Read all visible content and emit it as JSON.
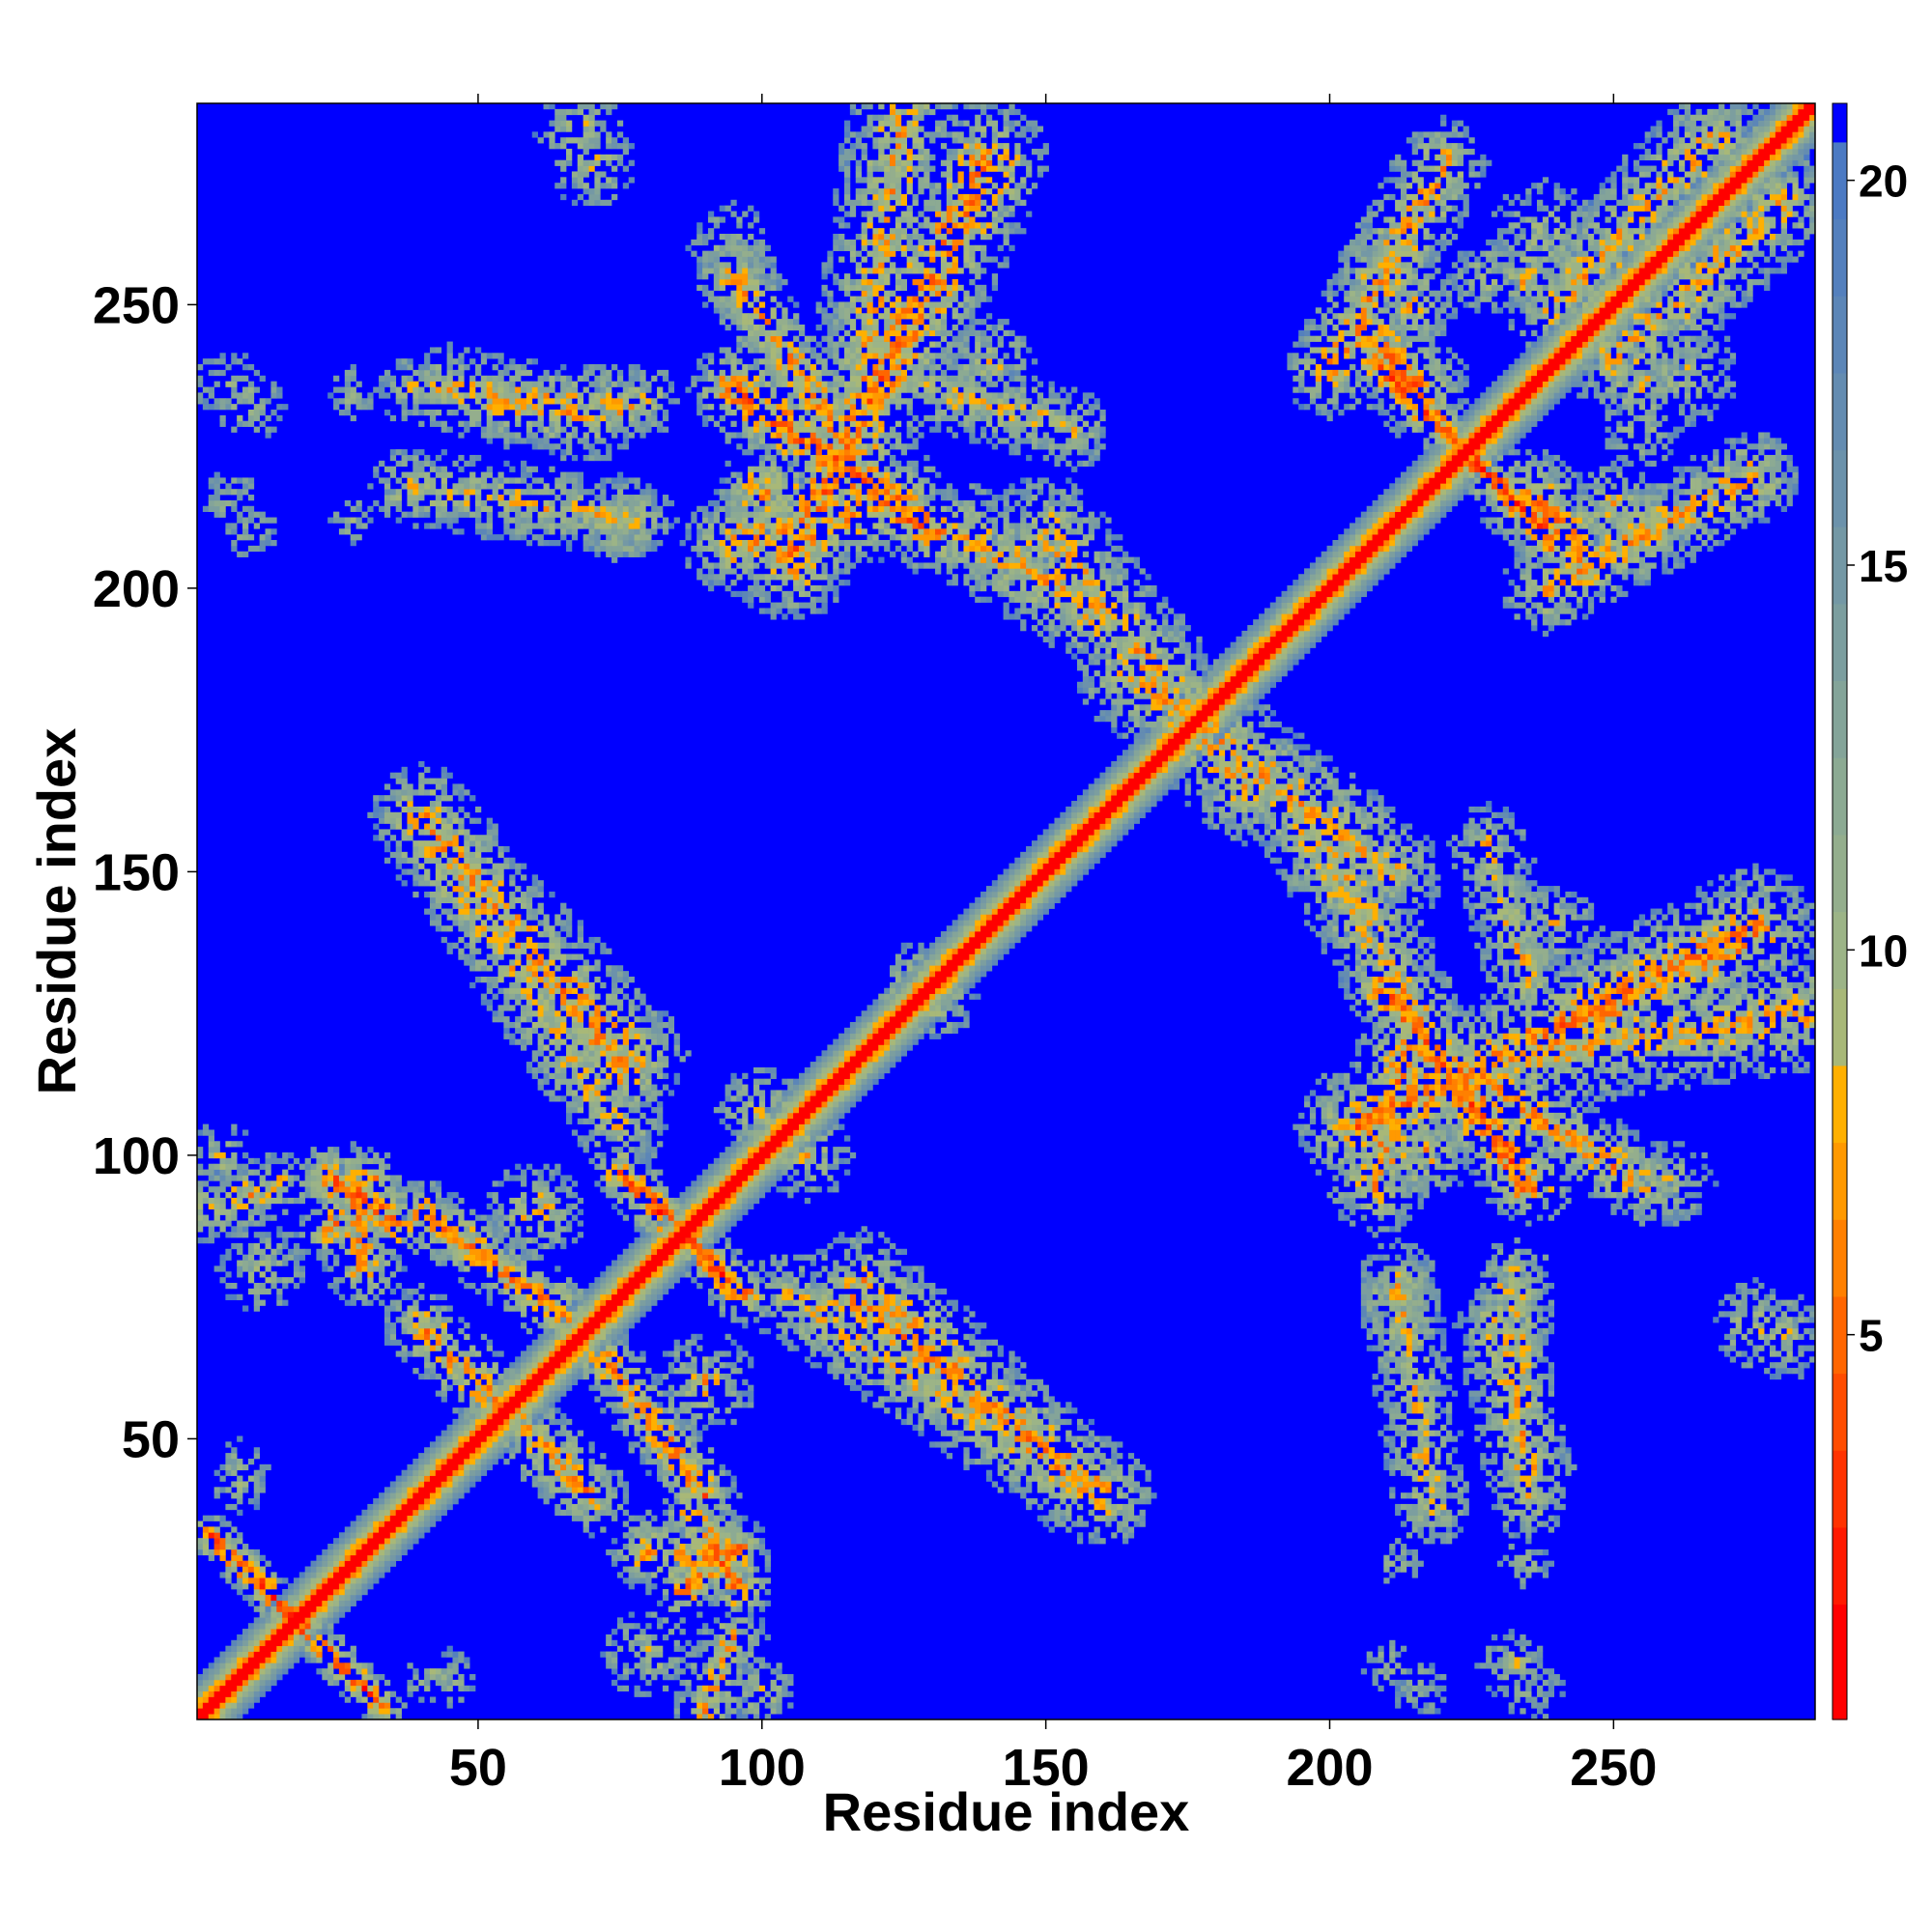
{
  "chart_data": {
    "type": "heatmap",
    "title": "",
    "xlabel": "Residue index",
    "ylabel": "Residue index",
    "xlim": [
      1,
      285
    ],
    "ylim": [
      1,
      285
    ],
    "n_residues": 285,
    "x_ticks": [
      50,
      100,
      150,
      200,
      250
    ],
    "y_ticks": [
      50,
      100,
      150,
      200,
      250
    ],
    "colorbar": {
      "min": 0,
      "max": 21,
      "ticks": [
        5,
        10,
        15,
        20
      ],
      "levels": [
        {
          "upto": 1.5,
          "color": "#ff0000"
        },
        {
          "upto": 2.5,
          "color": "#ff1a00"
        },
        {
          "upto": 3.5,
          "color": "#ff3300"
        },
        {
          "upto": 4.5,
          "color": "#ff4d00"
        },
        {
          "upto": 5.5,
          "color": "#ff6600"
        },
        {
          "upto": 6.5,
          "color": "#ff8000"
        },
        {
          "upto": 7.5,
          "color": "#ff9900"
        },
        {
          "upto": 8.5,
          "color": "#ffb000"
        },
        {
          "upto": 9.5,
          "color": "#a8b878"
        },
        {
          "upto": 10.5,
          "color": "#9cb487"
        },
        {
          "upto": 11.5,
          "color": "#94ae8d"
        },
        {
          "upto": 12.5,
          "color": "#8caa93"
        },
        {
          "upto": 13.5,
          "color": "#84a499"
        },
        {
          "upto": 14.5,
          "color": "#7c9e9f"
        },
        {
          "upto": 15.5,
          "color": "#7498a5"
        },
        {
          "upto": 16.5,
          "color": "#6c92ab"
        },
        {
          "upto": 17.5,
          "color": "#648cb1"
        },
        {
          "upto": 18.5,
          "color": "#5c86b7"
        },
        {
          "upto": 19.5,
          "color": "#5480bd"
        },
        {
          "upto": 20.5,
          "color": "#4c7ac3"
        },
        {
          "upto": 21.5,
          "color": "#0000ff"
        }
      ]
    },
    "background_color": "#0000ff",
    "diagonal": {
      "width": 7
    },
    "contact_bands": [
      {
        "a0": 3,
        "b0": 33,
        "a1": 33,
        "b1": 3,
        "width": 4,
        "min": 4
      },
      {
        "a0": 75,
        "b0": 97,
        "a1": 97,
        "b1": 75,
        "width": 5,
        "min": 4
      },
      {
        "a0": 208,
        "b0": 240,
        "a1": 240,
        "b1": 208,
        "width": 5,
        "min": 4
      },
      {
        "a0": 88,
        "b0": 36,
        "a1": 96,
        "b1": 24,
        "width": 6,
        "min": 5
      },
      {
        "a0": 72,
        "b0": 65,
        "a1": 90,
        "b1": 40,
        "width": 6,
        "min": 6
      },
      {
        "a0": 40,
        "b0": 70,
        "a1": 70,
        "b1": 40,
        "width": 7,
        "min": 7
      },
      {
        "a0": 23,
        "b0": 86,
        "a1": 31,
        "b1": 96,
        "width": 5,
        "min": 6
      },
      {
        "a0": 2,
        "b0": 90,
        "a1": 15,
        "b1": 95,
        "width": 6,
        "min": 8
      },
      {
        "a0": 42,
        "b0": 155,
        "a1": 78,
        "b1": 118,
        "width": 9,
        "min": 8
      },
      {
        "a0": 115,
        "b0": 76,
        "a1": 160,
        "b1": 40,
        "width": 9,
        "min": 7
      },
      {
        "a0": 105,
        "b0": 205,
        "a1": 140,
        "b1": 275,
        "width": 11,
        "min": 6
      },
      {
        "a0": 95,
        "b0": 235,
        "a1": 130,
        "b1": 210,
        "width": 8,
        "min": 5
      },
      {
        "a0": 135,
        "b0": 210,
        "a1": 160,
        "b1": 195,
        "width": 9,
        "min": 8
      },
      {
        "a0": 165,
        "b0": 185,
        "a1": 210,
        "b1": 150,
        "width": 10,
        "min": 8
      },
      {
        "a0": 208,
        "b0": 95,
        "a1": 215,
        "b1": 125,
        "width": 9,
        "min": 7
      },
      {
        "a0": 215,
        "b0": 115,
        "a1": 285,
        "b1": 125,
        "width": 10,
        "min": 8
      },
      {
        "a0": 228,
        "b0": 155,
        "a1": 235,
        "b1": 130,
        "width": 7,
        "min": 9
      },
      {
        "a0": 230,
        "b0": 70,
        "a1": 235,
        "b1": 45,
        "width": 8,
        "min": 8
      },
      {
        "a0": 206,
        "b0": 245,
        "a1": 216,
        "b1": 235,
        "width": 9,
        "min": 6
      },
      {
        "a0": 238,
        "b0": 200,
        "a1": 275,
        "b1": 220,
        "width": 8,
        "min": 7
      },
      {
        "a0": 250,
        "b0": 240,
        "a1": 280,
        "b1": 268,
        "width": 9,
        "min": 8
      },
      {
        "a0": 38,
        "b0": 235,
        "a1": 80,
        "b1": 233,
        "width": 6,
        "min": 9
      },
      {
        "a0": 38,
        "b0": 218,
        "a1": 78,
        "b1": 212,
        "width": 7,
        "min": 9
      },
      {
        "a0": 95,
        "b0": 255,
        "a1": 115,
        "b1": 225,
        "width": 7,
        "min": 7
      },
      {
        "a0": 80,
        "b0": 30,
        "a1": 95,
        "b1": 28,
        "width": 7,
        "min": 7
      },
      {
        "a0": 105,
        "b0": 75,
        "a1": 150,
        "b1": 45,
        "width": 8,
        "min": 9
      }
    ],
    "contact_blobs": [
      {
        "cx": 6,
        "cy": 236,
        "r": 6,
        "min": 12
      },
      {
        "cx": 6,
        "cy": 216,
        "r": 5,
        "min": 12
      },
      {
        "cx": 28,
        "cy": 235,
        "r": 4,
        "min": 12
      },
      {
        "cx": 76,
        "cy": 232,
        "r": 6,
        "min": 6
      },
      {
        "cx": 68,
        "cy": 280,
        "r": 8,
        "min": 9
      },
      {
        "cx": 100,
        "cy": 217,
        "r": 8,
        "min": 6
      },
      {
        "cx": 140,
        "cy": 240,
        "r": 8,
        "min": 9
      },
      {
        "cx": 210,
        "cy": 255,
        "r": 9,
        "min": 9
      },
      {
        "cx": 228,
        "cy": 255,
        "r": 7,
        "min": 10
      },
      {
        "cx": 262,
        "cy": 238,
        "r": 10,
        "min": 10
      },
      {
        "cx": 250,
        "cy": 215,
        "r": 8,
        "min": 8
      },
      {
        "cx": 212,
        "cy": 75,
        "r": 8,
        "min": 9
      },
      {
        "cx": 260,
        "cy": 95,
        "r": 8,
        "min": 10
      },
      {
        "cx": 275,
        "cy": 70,
        "r": 8,
        "min": 9
      },
      {
        "cx": 232,
        "cy": 10,
        "r": 6,
        "min": 9
      },
      {
        "cx": 210,
        "cy": 10,
        "r": 5,
        "min": 11
      },
      {
        "cx": 234,
        "cy": 28,
        "r": 4,
        "min": 10
      },
      {
        "cx": 212,
        "cy": 28,
        "r": 4,
        "min": 11
      },
      {
        "cx": 80,
        "cy": 12,
        "r": 8,
        "min": 9
      },
      {
        "cx": 92,
        "cy": 30,
        "r": 8,
        "min": 5
      },
      {
        "cx": 100,
        "cy": 5,
        "r": 6,
        "min": 9
      },
      {
        "cx": 42,
        "cy": 8,
        "r": 5,
        "min": 10
      },
      {
        "cx": 8,
        "cy": 45,
        "r": 5,
        "min": 11
      },
      {
        "cx": 60,
        "cy": 90,
        "r": 9,
        "min": 8
      },
      {
        "cx": 100,
        "cy": 108,
        "r": 8,
        "min": 8
      },
      {
        "cx": 130,
        "cy": 128,
        "r": 8,
        "min": 8
      },
      {
        "cx": 145,
        "cy": 205,
        "r": 7,
        "min": 9
      },
      {
        "cx": 235,
        "cy": 255,
        "r": 7,
        "min": 7
      }
    ]
  }
}
